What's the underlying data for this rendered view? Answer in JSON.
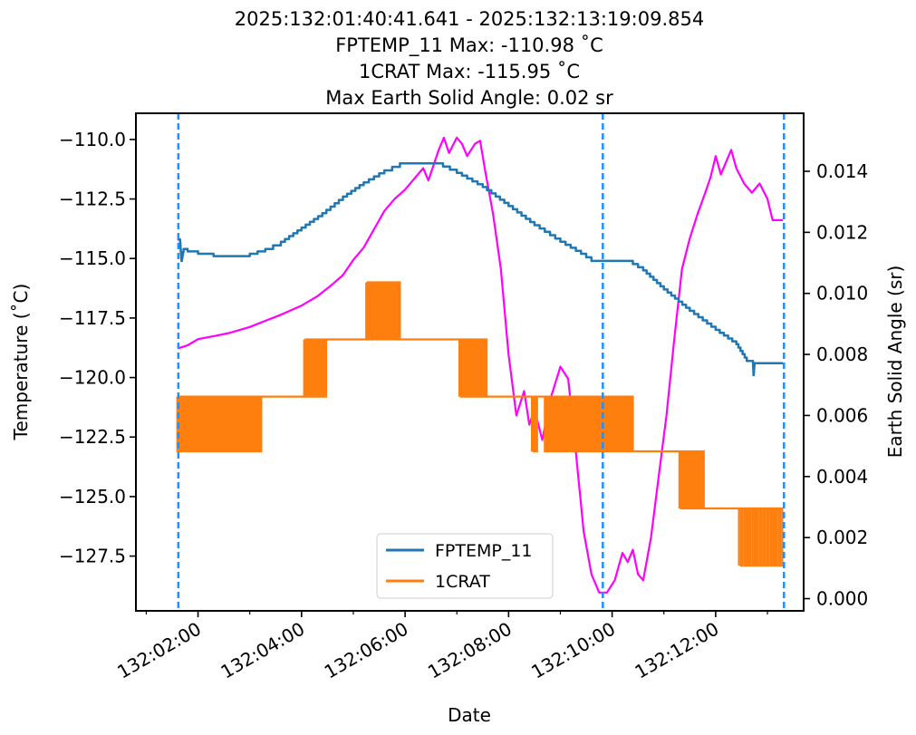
{
  "chart_data": {
    "type": "line",
    "title_lines": [
      "2025:132:01:40:41.641 - 2025:132:13:19:09.854",
      "FPTEMP_11 Max: -110.98 ˚C",
      "1CRAT Max: -115.95 ˚C",
      "Max Earth Solid Angle: 0.02 sr"
    ],
    "xlabel": "Date",
    "ylabel_left": "Temperature (˚C)",
    "ylabel_right": "Earth Solid Angle (sr)",
    "xlim_hours": [
      0.8,
      13.7
    ],
    "ylim_left": [
      -129.8,
      -108.9
    ],
    "ylim_right": [
      -0.0004,
      0.0159
    ],
    "x_ticks": [
      {
        "h": 2,
        "label": "132:02:00"
      },
      {
        "h": 4,
        "label": "132:04:00"
      },
      {
        "h": 6,
        "label": "132:06:00"
      },
      {
        "h": 8,
        "label": "132:08:00"
      },
      {
        "h": 10,
        "label": "132:10:00"
      },
      {
        "h": 12,
        "label": "132:12:00"
      }
    ],
    "y_ticks_left": [
      {
        "v": -110.0,
        "label": "−110.0"
      },
      {
        "v": -112.5,
        "label": "−112.5"
      },
      {
        "v": -115.0,
        "label": "−115.0"
      },
      {
        "v": -117.5,
        "label": "−117.5"
      },
      {
        "v": -120.0,
        "label": "−120.0"
      },
      {
        "v": -122.5,
        "label": "−122.5"
      },
      {
        "v": -125.0,
        "label": "−125.0"
      },
      {
        "v": -127.5,
        "label": "−127.5"
      }
    ],
    "y_ticks_right": [
      {
        "v": 0.0,
        "label": "0.000"
      },
      {
        "v": 0.002,
        "label": "0.002"
      },
      {
        "v": 0.004,
        "label": "0.004"
      },
      {
        "v": 0.006,
        "label": "0.006"
      },
      {
        "v": 0.008,
        "label": "0.008"
      },
      {
        "v": 0.01,
        "label": "0.010"
      },
      {
        "v": 0.012,
        "label": "0.012"
      },
      {
        "v": 0.014,
        "label": "0.014"
      }
    ],
    "vlines_hours": [
      1.62,
      9.82,
      13.32
    ],
    "vline_color": "#1e90ff",
    "legend": {
      "position": "lower center",
      "entries": [
        "FPTEMP_11",
        "1CRAT"
      ]
    },
    "series": [
      {
        "name": "FPTEMP_11",
        "color": "#1f77b4",
        "axis": "left",
        "points": [
          [
            1.6,
            -114.2
          ],
          [
            1.65,
            -114.2
          ],
          [
            1.68,
            -115.1
          ],
          [
            1.72,
            -114.6
          ],
          [
            1.8,
            -114.7
          ],
          [
            2.0,
            -114.8
          ],
          [
            2.3,
            -114.9
          ],
          [
            2.7,
            -114.9
          ],
          [
            3.0,
            -114.8
          ],
          [
            3.3,
            -114.6
          ],
          [
            3.6,
            -114.3
          ],
          [
            4.0,
            -113.7
          ],
          [
            4.4,
            -113.1
          ],
          [
            4.8,
            -112.4
          ],
          [
            5.2,
            -111.8
          ],
          [
            5.6,
            -111.3
          ],
          [
            5.9,
            -111.0
          ],
          [
            6.6,
            -111.0
          ],
          [
            7.0,
            -111.4
          ],
          [
            7.5,
            -112.0
          ],
          [
            8.0,
            -112.8
          ],
          [
            8.5,
            -113.6
          ],
          [
            9.0,
            -114.3
          ],
          [
            9.4,
            -114.8
          ],
          [
            9.6,
            -115.1
          ],
          [
            10.3,
            -115.1
          ],
          [
            10.6,
            -115.5
          ],
          [
            11.0,
            -116.3
          ],
          [
            11.5,
            -117.2
          ],
          [
            12.0,
            -118.0
          ],
          [
            12.4,
            -118.6
          ],
          [
            12.6,
            -119.3
          ],
          [
            12.72,
            -119.3
          ],
          [
            12.73,
            -119.9
          ],
          [
            12.75,
            -119.4
          ],
          [
            13.3,
            -119.4
          ]
        ]
      },
      {
        "name": "1CRAT",
        "color": "#ff7f0e",
        "axis": "left",
        "segments": [
          {
            "x0": 1.6,
            "x1": 3.25,
            "v": -120.8,
            "alt": -123.1,
            "n": 26
          },
          {
            "x0": 3.25,
            "x1": 4.05,
            "v": -120.8
          },
          {
            "x0": 4.05,
            "x1": 4.5,
            "v": -118.4,
            "alt": -120.8,
            "n": 8
          },
          {
            "x0": 4.5,
            "x1": 5.25,
            "v": -118.4
          },
          {
            "x0": 5.25,
            "x1": 5.9,
            "v": -116.0,
            "alt": -118.4,
            "n": 12
          },
          {
            "x0": 5.9,
            "x1": 7.05,
            "v": -118.4
          },
          {
            "x0": 7.05,
            "x1": 7.6,
            "v": -120.8,
            "alt": -118.4,
            "n": 10
          },
          {
            "x0": 7.6,
            "x1": 8.45,
            "v": -120.8
          },
          {
            "x0": 8.45,
            "x1": 8.55,
            "v": -123.1,
            "alt": -120.8,
            "n": 2
          },
          {
            "x0": 8.55,
            "x1": 8.7,
            "v": -120.8
          },
          {
            "x0": 8.7,
            "x1": 10.4,
            "v": -120.8,
            "alt": -123.1,
            "n": 30
          },
          {
            "x0": 10.4,
            "x1": 11.3,
            "v": -123.1
          },
          {
            "x0": 11.3,
            "x1": 11.8,
            "v": -125.5,
            "alt": -123.1,
            "n": 8
          },
          {
            "x0": 11.8,
            "x1": 12.45,
            "v": -125.5
          },
          {
            "x0": 12.45,
            "x1": 13.32,
            "v": -127.9,
            "alt": -125.5,
            "n": 12
          }
        ]
      },
      {
        "name": "Earth Solid Angle",
        "color": "#ff00ff",
        "axis": "right",
        "points": [
          [
            1.62,
            0.0082
          ],
          [
            1.8,
            0.0083
          ],
          [
            2.0,
            0.0085
          ],
          [
            2.3,
            0.0086
          ],
          [
            2.6,
            0.0087
          ],
          [
            3.0,
            0.0089
          ],
          [
            3.3,
            0.0091
          ],
          [
            3.6,
            0.0093
          ],
          [
            4.0,
            0.0096
          ],
          [
            4.3,
            0.0099
          ],
          [
            4.6,
            0.0103
          ],
          [
            4.8,
            0.0106
          ],
          [
            5.0,
            0.0111
          ],
          [
            5.2,
            0.0115
          ],
          [
            5.4,
            0.0121
          ],
          [
            5.6,
            0.0127
          ],
          [
            5.8,
            0.0131
          ],
          [
            6.0,
            0.0134
          ],
          [
            6.2,
            0.0138
          ],
          [
            6.35,
            0.0141
          ],
          [
            6.45,
            0.0137
          ],
          [
            6.55,
            0.0142
          ],
          [
            6.65,
            0.0147
          ],
          [
            6.75,
            0.0151
          ],
          [
            6.85,
            0.0146
          ],
          [
            7.0,
            0.0151
          ],
          [
            7.1,
            0.0149
          ],
          [
            7.2,
            0.0145
          ],
          [
            7.35,
            0.0149
          ],
          [
            7.45,
            0.015
          ],
          [
            7.55,
            0.014
          ],
          [
            7.7,
            0.0126
          ],
          [
            7.85,
            0.0108
          ],
          [
            8.0,
            0.008
          ],
          [
            8.15,
            0.006
          ],
          [
            8.3,
            0.0068
          ],
          [
            8.4,
            0.0057
          ],
          [
            8.5,
            0.0062
          ],
          [
            8.65,
            0.0052
          ],
          [
            8.8,
            0.0065
          ],
          [
            9.0,
            0.0076
          ],
          [
            9.15,
            0.0072
          ],
          [
            9.3,
            0.0048
          ],
          [
            9.45,
            0.0022
          ],
          [
            9.6,
            0.0008
          ],
          [
            9.75,
            0.0002
          ],
          [
            9.9,
            0.0002
          ],
          [
            10.05,
            0.0006
          ],
          [
            10.2,
            0.0015
          ],
          [
            10.3,
            0.0012
          ],
          [
            10.4,
            0.0016
          ],
          [
            10.5,
            0.0008
          ],
          [
            10.6,
            0.0006
          ],
          [
            10.75,
            0.002
          ],
          [
            10.9,
            0.004
          ],
          [
            11.05,
            0.006
          ],
          [
            11.2,
            0.0085
          ],
          [
            11.35,
            0.0108
          ],
          [
            11.5,
            0.0118
          ],
          [
            11.65,
            0.0126
          ],
          [
            11.8,
            0.0133
          ],
          [
            11.9,
            0.0138
          ],
          [
            12.0,
            0.0145
          ],
          [
            12.1,
            0.0139
          ],
          [
            12.2,
            0.0143
          ],
          [
            12.3,
            0.0147
          ],
          [
            12.4,
            0.0141
          ],
          [
            12.55,
            0.0136
          ],
          [
            12.7,
            0.0133
          ],
          [
            12.85,
            0.0136
          ],
          [
            13.0,
            0.0131
          ],
          [
            13.1,
            0.0124
          ],
          [
            13.3,
            0.0124
          ]
        ]
      }
    ]
  }
}
